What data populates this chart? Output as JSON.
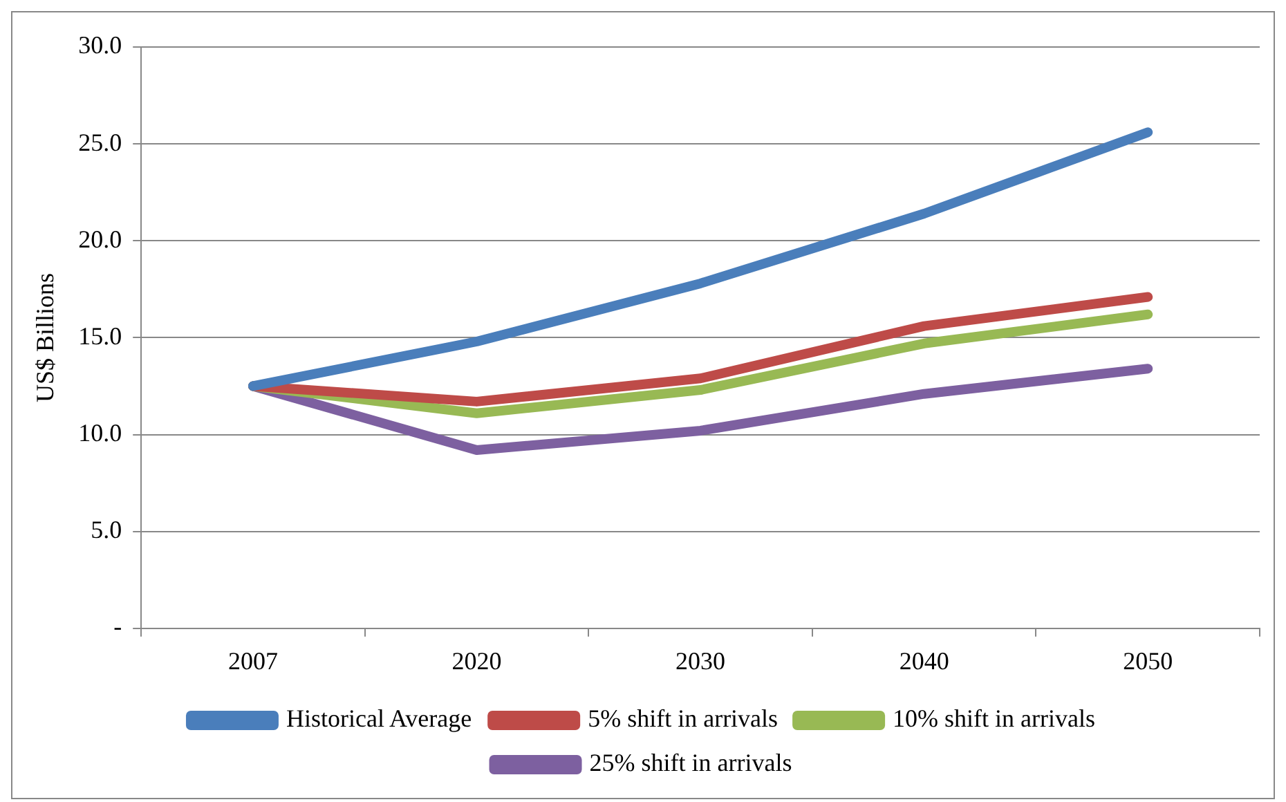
{
  "chart_data": {
    "type": "line",
    "ylabel": "US$ Billions",
    "categories": [
      "2007",
      "2020",
      "2030",
      "2040",
      "2050"
    ],
    "series": [
      {
        "name": "Historical Average",
        "color": "#4a7ebb",
        "values": [
          12.5,
          14.8,
          17.8,
          21.4,
          25.6
        ]
      },
      {
        "name": "5% shift in arrivals",
        "color": "#be4b48",
        "values": [
          12.5,
          11.7,
          12.9,
          15.6,
          17.1
        ]
      },
      {
        "name": "10% shift in arrivals",
        "color": "#98b954",
        "values": [
          12.5,
          11.1,
          12.3,
          14.7,
          16.2
        ]
      },
      {
        "name": "25% shift in arrivals",
        "color": "#7d60a0",
        "values": [
          12.5,
          9.2,
          10.2,
          12.1,
          13.4
        ]
      }
    ],
    "ylim": [
      0,
      30
    ],
    "yticks": [
      {
        "value": 0,
        "label": "-"
      },
      {
        "value": 5,
        "label": "5.0"
      },
      {
        "value": 10,
        "label": "10.0"
      },
      {
        "value": 15,
        "label": "15.0"
      },
      {
        "value": 20,
        "label": "20.0"
      },
      {
        "value": 25,
        "label": "25.0"
      },
      {
        "value": 30,
        "label": "30.0"
      }
    ],
    "grid": "y",
    "legend": "bottom",
    "marker": "none",
    "line_style": "solid"
  }
}
